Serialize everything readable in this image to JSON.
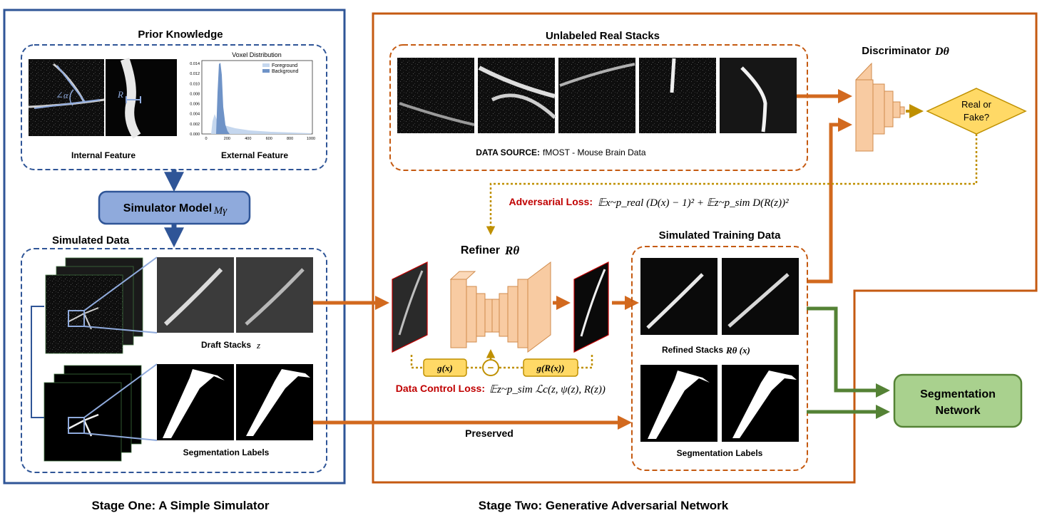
{
  "stage_one": {
    "caption": "Stage One: A Simple Simulator",
    "prior_knowledge": {
      "title": "Prior Knowledge",
      "internal_label": "Internal Feature",
      "external_label": "External Feature",
      "angle_symbol": "∠α",
      "radius_symbol": "R",
      "histogram": {
        "title": "Voxel Distribution",
        "legend": [
          "Foreground",
          "Background"
        ],
        "y_ticks": [
          "0.014",
          "0.012",
          "0.010",
          "0.008",
          "0.006",
          "0.004",
          "0.002",
          "0.000"
        ],
        "x_ticks": [
          "0",
          "200",
          "400",
          "600",
          "800",
          "1000"
        ]
      }
    },
    "simulator_model": {
      "label": "Simulator Model",
      "symbol": "Mγ"
    },
    "simulated_data": {
      "title": "Simulated Data",
      "draft_label": "Draft Stacks",
      "draft_symbol": "z",
      "seg_label": "Segmentation Labels"
    }
  },
  "stage_two": {
    "caption": "Stage Two: Generative Adversarial Network",
    "unlabeled": {
      "title": "Unlabeled Real Stacks",
      "source_prefix": "DATA SOURCE:",
      "source_text": "fMOST - Mouse Brain Data"
    },
    "discriminator": {
      "label": "Discriminator",
      "symbol": "Dθ"
    },
    "decision": {
      "line1": "Real or",
      "line2": "Fake?"
    },
    "adversarial_loss": {
      "label": "Adversarial Loss:",
      "formula": "𝔼x~p_real (D(x) − 1)² + 𝔼z~p_sim D(R(z))²"
    },
    "refiner": {
      "label": "Refiner",
      "symbol": "Rθ"
    },
    "data_control": {
      "g_x": "g(x)",
      "g_rx": "g(R(x))",
      "minus": "−",
      "label": "Data Control Loss:",
      "formula": "𝔼z~p_sim ℒc(z, ψ(z), R(z))"
    },
    "simulated_training": {
      "title": "Simulated Training Data",
      "refined_label": "Refined Stacks",
      "refined_symbol": "Rθ (x)",
      "seg_label": "Segmentation Labels"
    },
    "preserved": "Preserved",
    "segmentation_network": {
      "line1": "Segmentation",
      "line2": "Network"
    }
  },
  "colors": {
    "blue": "#2f5597",
    "orange": "#c55a11",
    "arrow_orange": "#d2691e",
    "green": "#548235",
    "seg_fill": "#a9d18e",
    "sim_fill": "#8faadc",
    "decision_fill": "#ffd966",
    "red_text": "#c00000",
    "gold": "#bf9000"
  }
}
